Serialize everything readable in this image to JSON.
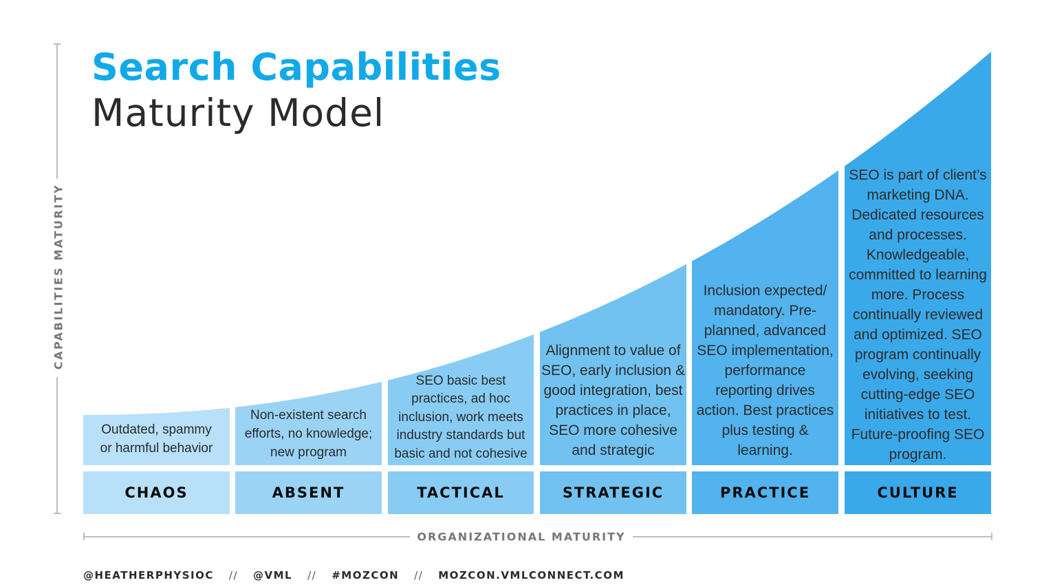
{
  "title": {
    "line1": "Search Capabilities",
    "line2": "Maturity Model"
  },
  "axes": {
    "y_label": "CAPABILITIES MATURITY",
    "x_label": "ORGANIZATIONAL MATURITY"
  },
  "colors": {
    "title_accent": "#12a9e8",
    "stages": [
      "#b8e0f8",
      "#9bd3f5",
      "#88ccf4",
      "#71c2f1",
      "#52b3ee",
      "#3aa9ea"
    ]
  },
  "stages": [
    {
      "name": "CHAOS",
      "level": 1,
      "description": [
        "Outdated, spammy",
        "or harmful behavior"
      ]
    },
    {
      "name": "ABSENT",
      "level": 2,
      "description": [
        "Non-existent search",
        "efforts, no knowledge;",
        "new program"
      ]
    },
    {
      "name": "TACTICAL",
      "level": 3,
      "description": [
        "SEO basic best",
        "practices, ad hoc",
        "inclusion, work meets",
        "industry standards but",
        "basic and not cohesive"
      ]
    },
    {
      "name": "STRATEGIC",
      "level": 4,
      "description": [
        "Alignment to value of",
        "SEO, early inclusion &",
        "good integration, best",
        "practices in place,",
        "SEO more cohesive",
        "and strategic"
      ]
    },
    {
      "name": "PRACTICE",
      "level": 5,
      "description": [
        "Inclusion expected/",
        "mandatory. Pre-",
        "planned, advanced",
        "SEO implementation,",
        "performance",
        "reporting drives",
        "action. Best practices",
        "plus testing &",
        "learning."
      ]
    },
    {
      "name": "CULTURE",
      "level": 6,
      "description": [
        "SEO is part of client’s",
        "marketing DNA.",
        "Dedicated resources",
        "and processes.",
        "Knowledgeable,",
        "committed to learning",
        "more. Process",
        "continually reviewed",
        "and optimized. SEO",
        "program continually",
        "evolving, seeking",
        "cutting-edge SEO",
        "initiatives to test.",
        "Future-proofing SEO",
        "program."
      ]
    }
  ],
  "footer": {
    "items": [
      "@HEATHERPHYSIOC",
      "@VML",
      "#MOZCON",
      "MOZCON.VMLCONNECT.COM"
    ],
    "separator": "//"
  }
}
